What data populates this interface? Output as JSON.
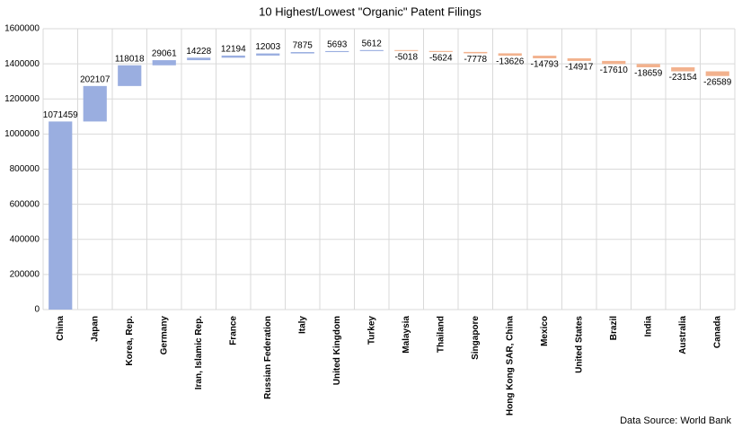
{
  "chart_data": {
    "type": "waterfall",
    "title": "10 Highest/Lowest  \"Organic\" Patent Filings",
    "categories": [
      "China",
      "Japan",
      "Korea, Rep.",
      "Germany",
      "Iran, Islamic Rep.",
      "France",
      "Russian Federation",
      "Italy",
      "United Kingdom",
      "Turkey",
      "Malaysia",
      "Thailand",
      "Singapore",
      "Hong Kong SAR, China",
      "Mexico",
      "United States",
      "Brazil",
      "India",
      "Australia",
      "Canada"
    ],
    "values": [
      1071459,
      202107,
      118018,
      29061,
      14228,
      12194,
      12003,
      7875,
      5693,
      5612,
      -5018,
      -5624,
      -7778,
      -13626,
      -14793,
      -14917,
      -17610,
      -18659,
      -23154,
      -26589
    ],
    "increase_color": "#9aaee0",
    "decrease_color": "#f2b28e",
    "ylim": [
      0,
      1600000
    ],
    "yticks": [
      0,
      200000,
      400000,
      600000,
      800000,
      1000000,
      1200000,
      1400000,
      1600000
    ],
    "grid": true,
    "source": "Data Source: World Bank"
  }
}
